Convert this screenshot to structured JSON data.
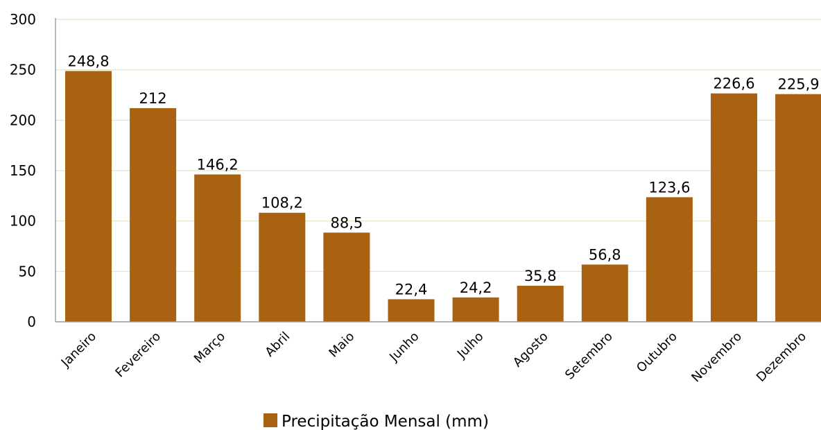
{
  "chart_data": {
    "type": "bar",
    "categories": [
      "Janeiro",
      "Fevereiro",
      "Março",
      "Abril",
      "Maio",
      "Junho",
      "Julho",
      "Agosto",
      "Setembro",
      "Outubro",
      "Novembro",
      "Dezembro"
    ],
    "series": [
      {
        "name": "Precipitação Mensal (mm)",
        "values": [
          248.8,
          212,
          146.2,
          108.2,
          88.5,
          22.4,
          24.2,
          35.8,
          56.8,
          123.6,
          226.6,
          225.9
        ],
        "data_labels": [
          "248,8",
          "212",
          "146,2",
          "108,2",
          "88,5",
          "22,4",
          "24,2",
          "35,8",
          "56,8",
          "123,6",
          "226,6",
          "225,9"
        ],
        "color": "#a86212"
      }
    ],
    "yticks": [
      "0",
      "50",
      "100",
      "150",
      "200",
      "250",
      "300"
    ],
    "ylim": [
      0,
      300
    ],
    "grid": true,
    "legend_position": "bottom"
  }
}
